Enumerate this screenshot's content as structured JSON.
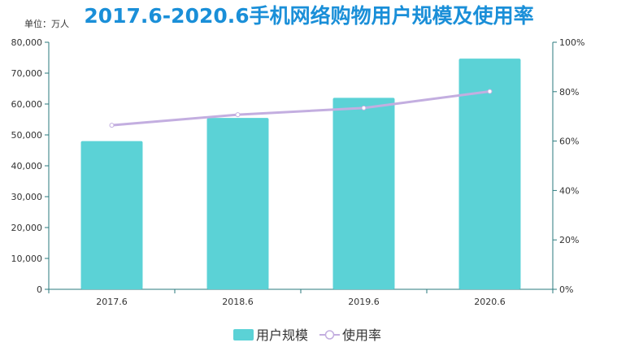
{
  "chart_data": {
    "type": "bar",
    "title": "2017.6-2020.6手机网络购物用户规模及使用率",
    "unit_label": "单位：万人",
    "categories": [
      "2017.6",
      "2018.6",
      "2019.6",
      "2020.6"
    ],
    "series": [
      {
        "name": "用户规模",
        "type": "bar",
        "axis": "left",
        "values": [
          48000,
          55500,
          62000,
          74700
        ]
      },
      {
        "name": "使用率",
        "type": "line",
        "axis": "right",
        "values": [
          66.4,
          70.7,
          73.4,
          80.1
        ]
      }
    ],
    "y_left": {
      "min": 0,
      "max": 80000,
      "ticks": [
        "0",
        "10,000",
        "20,000",
        "30,000",
        "40,000",
        "50,000",
        "60,000",
        "70,000",
        "80,000"
      ]
    },
    "y_right": {
      "min": 0,
      "max": 100,
      "ticks": [
        "0%",
        "20%",
        "40%",
        "60%",
        "80%",
        "100%"
      ]
    },
    "colors": {
      "bar": "#5bd2d6",
      "line": "#c3aee0",
      "axis": "#2a7a7e",
      "title": "#1a8fd8"
    },
    "legend": {
      "position": "bottom"
    },
    "grid": false
  }
}
